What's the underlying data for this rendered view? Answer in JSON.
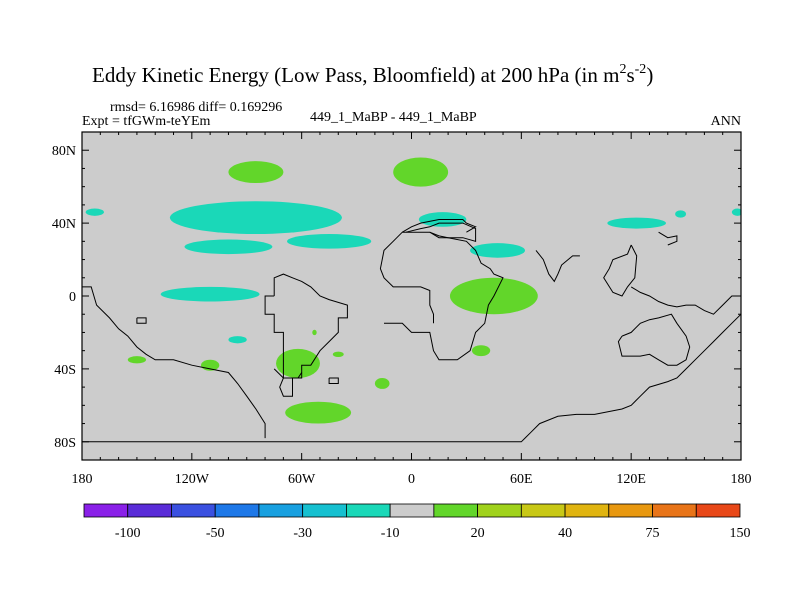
{
  "chart_data": {
    "type": "heatmap",
    "title": "Eddy Kinetic Energy (Low Pass, Bloomfield) at 200 hPa (in m",
    "title_units_m_exp": "2",
    "title_units_s": "s",
    "title_units_s_exp": "-2",
    "title_close": ")",
    "stats": "rmsd= 6.16986 diff= 0.169296",
    "experiment": "Expt = tfGWm-teYEm",
    "case_label": "449_1_MaBP - 449_1_MaBP",
    "period": "ANN",
    "x_ticks": [
      "180",
      "120W",
      "60W",
      "0",
      "60E",
      "120E",
      "180"
    ],
    "x_tick_values": [
      -180,
      -120,
      -60,
      0,
      60,
      120,
      180
    ],
    "y_ticks": [
      "80N",
      "40N",
      "0",
      "40S",
      "80S"
    ],
    "y_tick_values": [
      80,
      40,
      0,
      -40,
      -80
    ],
    "xlim": [
      -180,
      180
    ],
    "ylim": [
      -90,
      90
    ],
    "colorbar": {
      "colors": [
        "#8a20e8",
        "#5a2cd8",
        "#3a50e0",
        "#1e78e8",
        "#18a0e0",
        "#16c0d0",
        "#1ad8b8",
        "#cccccc",
        "#62d62a",
        "#a0d21c",
        "#c8c816",
        "#e0b410",
        "#e89810",
        "#e87418",
        "#e84818"
      ],
      "labels": [
        "-100",
        "-50",
        "-30",
        "-10",
        "20",
        "40",
        "75",
        "150"
      ],
      "label_after_box": [
        1,
        3,
        5,
        7,
        9,
        11,
        13,
        15
      ]
    },
    "background_color": "#cccccc",
    "blobs": [
      {
        "category": "negative-cyan",
        "color": "#1ad8b8",
        "lon": -85,
        "lat": 43,
        "rlon": 47,
        "rlat": 9
      },
      {
        "category": "negative-cyan",
        "color": "#1ad8b8",
        "lon": -45,
        "lat": 30,
        "rlon": 23,
        "rlat": 4
      },
      {
        "category": "negative-cyan",
        "color": "#1ad8b8",
        "lon": -100,
        "lat": 27,
        "rlon": 24,
        "rlat": 4
      },
      {
        "category": "negative-cyan",
        "color": "#1ad8b8",
        "lon": -110,
        "lat": 1,
        "rlon": 27,
        "rlat": 4
      },
      {
        "category": "negative-cyan",
        "color": "#1ad8b8",
        "lon": 17,
        "lat": 42,
        "rlon": 13,
        "rlat": 4
      },
      {
        "category": "negative-cyan",
        "color": "#1ad8b8",
        "lon": 47,
        "lat": 25,
        "rlon": 15,
        "rlat": 4
      },
      {
        "category": "negative-cyan",
        "color": "#1ad8b8",
        "lon": 123,
        "lat": 40,
        "rlon": 16,
        "rlat": 3
      },
      {
        "category": "negative-cyan",
        "color": "#1ad8b8",
        "lon": 147,
        "lat": 45,
        "rlon": 3,
        "rlat": 2
      },
      {
        "category": "negative-cyan",
        "color": "#1ad8b8",
        "lon": -173,
        "lat": 46,
        "rlon": 5,
        "rlat": 2
      },
      {
        "category": "negative-cyan",
        "color": "#1ad8b8",
        "lon": 178,
        "lat": 46,
        "rlon": 3,
        "rlat": 2
      },
      {
        "category": "negative-cyan",
        "color": "#1ad8b8",
        "lon": -95,
        "lat": -24,
        "rlon": 5,
        "rlat": 2
      },
      {
        "category": "positive-green",
        "color": "#62d62a",
        "lon": -85,
        "lat": 68,
        "rlon": 15,
        "rlat": 6
      },
      {
        "category": "positive-green",
        "color": "#62d62a",
        "lon": 5,
        "lat": 68,
        "rlon": 15,
        "rlat": 8
      },
      {
        "category": "positive-green",
        "color": "#62d62a",
        "lon": 45,
        "lat": 0,
        "rlon": 24,
        "rlat": 10
      },
      {
        "category": "positive-green",
        "color": "#62d62a",
        "lon": -62,
        "lat": -37,
        "rlon": 12,
        "rlat": 8
      },
      {
        "category": "positive-green",
        "color": "#62d62a",
        "lon": -51,
        "lat": -64,
        "rlon": 18,
        "rlat": 6
      },
      {
        "category": "positive-green",
        "color": "#62d62a",
        "lon": -110,
        "lat": -38,
        "rlon": 5,
        "rlat": 3
      },
      {
        "category": "positive-green",
        "color": "#62d62a",
        "lon": -150,
        "lat": -35,
        "rlon": 5,
        "rlat": 2
      },
      {
        "category": "positive-green",
        "color": "#62d62a",
        "lon": -16,
        "lat": -48,
        "rlon": 4,
        "rlat": 3
      },
      {
        "category": "positive-green",
        "color": "#62d62a",
        "lon": 38,
        "lat": -30,
        "rlon": 5,
        "rlat": 3
      },
      {
        "category": "positive-green",
        "color": "#62d62a",
        "lon": -40,
        "lat": -32,
        "rlon": 3,
        "rlat": 1.5
      },
      {
        "category": "positive-green",
        "color": "#62d62a",
        "lon": -53,
        "lat": -20,
        "rlon": 1.2,
        "rlat": 1.5
      }
    ],
    "coastlines": [
      {
        "name": "south-america",
        "points": [
          [
            -75,
            0
          ],
          [
            -80,
            0
          ],
          [
            -80,
            -10
          ],
          [
            -75,
            -10
          ],
          [
            -75,
            -20
          ],
          [
            -70,
            -20
          ],
          [
            -70,
            -30
          ],
          [
            -70,
            -45
          ],
          [
            -72,
            -50
          ],
          [
            -70,
            -55
          ],
          [
            -65,
            -55
          ],
          [
            -65,
            -45
          ],
          [
            -60,
            -45
          ],
          [
            -60,
            -38
          ],
          [
            -55,
            -38
          ],
          [
            -50,
            -30
          ],
          [
            -45,
            -25
          ],
          [
            -40,
            -20
          ],
          [
            -40,
            -12
          ],
          [
            -35,
            -12
          ],
          [
            -35,
            -5
          ],
          [
            -45,
            -2
          ],
          [
            -50,
            0
          ],
          [
            -55,
            5
          ],
          [
            -60,
            8
          ],
          [
            -65,
            10
          ],
          [
            -70,
            12
          ],
          [
            -75,
            10
          ],
          [
            -75,
            0
          ]
        ]
      },
      {
        "name": "africa",
        "points": [
          [
            -15,
            -15
          ],
          [
            -5,
            -15
          ],
          [
            0,
            -20
          ],
          [
            10,
            -20
          ],
          [
            12,
            -30
          ],
          [
            15,
            -35
          ],
          [
            20,
            -35
          ],
          [
            25,
            -35
          ],
          [
            32,
            -30
          ],
          [
            35,
            -20
          ],
          [
            40,
            -15
          ],
          [
            42,
            -5
          ],
          [
            45,
            0
          ],
          [
            50,
            10
          ],
          [
            45,
            12
          ],
          [
            43,
            15
          ],
          [
            38,
            18
          ],
          [
            35,
            25
          ],
          [
            30,
            30
          ],
          [
            20,
            32
          ],
          [
            15,
            32
          ],
          [
            10,
            35
          ],
          [
            0,
            35
          ],
          [
            -5,
            35
          ],
          [
            -10,
            30
          ],
          [
            -15,
            25
          ],
          [
            -17,
            15
          ],
          [
            -15,
            10
          ],
          [
            -10,
            5
          ],
          [
            -5,
            5
          ],
          [
            0,
            5
          ],
          [
            5,
            5
          ],
          [
            10,
            3
          ],
          [
            10,
            -5
          ],
          [
            12,
            -10
          ],
          [
            12,
            -15
          ]
        ]
      },
      {
        "name": "asia-south",
        "points": [
          [
            -3,
            35
          ],
          [
            5,
            37
          ],
          [
            10,
            38
          ],
          [
            15,
            40
          ],
          [
            22,
            40
          ],
          [
            28,
            40
          ],
          [
            35,
            37
          ],
          [
            35,
            30
          ],
          [
            28,
            32
          ],
          [
            20,
            32
          ],
          [
            15,
            33
          ],
          [
            10,
            35
          ]
        ]
      },
      {
        "name": "india",
        "points": [
          [
            68,
            25
          ],
          [
            72,
            20
          ],
          [
            75,
            12
          ],
          [
            78,
            8
          ],
          [
            80,
            12
          ],
          [
            82,
            17
          ],
          [
            88,
            22
          ],
          [
            92,
            22
          ]
        ]
      },
      {
        "name": "se-asia-australia",
        "points": [
          [
            120,
            28
          ],
          [
            123,
            22
          ],
          [
            122,
            10
          ],
          [
            118,
            5
          ],
          [
            115,
            0
          ],
          [
            110,
            2
          ],
          [
            105,
            10
          ],
          [
            108,
            15
          ],
          [
            110,
            20
          ],
          [
            118,
            23
          ],
          [
            120,
            28
          ]
        ]
      },
      {
        "name": "australia",
        "points": [
          [
            115,
            -22
          ],
          [
            113,
            -25
          ],
          [
            115,
            -33
          ],
          [
            125,
            -33
          ],
          [
            130,
            -32
          ],
          [
            135,
            -35
          ],
          [
            140,
            -38
          ],
          [
            145,
            -38
          ],
          [
            150,
            -35
          ],
          [
            152,
            -28
          ],
          [
            150,
            -22
          ],
          [
            145,
            -15
          ],
          [
            142,
            -10
          ],
          [
            135,
            -12
          ],
          [
            130,
            -13
          ],
          [
            125,
            -15
          ],
          [
            120,
            -20
          ],
          [
            115,
            -22
          ]
        ]
      },
      {
        "name": "pacific-west",
        "points": [
          [
            120,
            5
          ],
          [
            125,
            2
          ],
          [
            130,
            0
          ],
          [
            135,
            -3
          ],
          [
            140,
            -5
          ],
          [
            145,
            -6
          ],
          [
            150,
            -5
          ],
          [
            155,
            -5
          ],
          [
            160,
            -8
          ],
          [
            165,
            -10
          ],
          [
            170,
            -5
          ],
          [
            175,
            0
          ],
          [
            180,
            0
          ]
        ]
      },
      {
        "name": "antarctica",
        "points": [
          [
            -180,
            -78
          ],
          [
            -180,
            -80
          ],
          [
            -120,
            -80
          ],
          [
            -90,
            -80
          ],
          [
            -60,
            -80
          ],
          [
            0,
            -80
          ],
          [
            60,
            -80
          ],
          [
            62,
            -78
          ],
          [
            65,
            -75
          ],
          [
            70,
            -70
          ],
          [
            80,
            -66
          ],
          [
            90,
            -65
          ],
          [
            100,
            -65
          ],
          [
            115,
            -62
          ],
          [
            120,
            -60
          ],
          [
            125,
            -55
          ],
          [
            130,
            -50
          ],
          [
            140,
            -47
          ],
          [
            145,
            -45
          ],
          [
            150,
            -40
          ],
          [
            155,
            -35
          ],
          [
            160,
            -30
          ],
          [
            165,
            -25
          ],
          [
            170,
            -20
          ],
          [
            175,
            -15
          ],
          [
            180,
            -10
          ]
        ]
      },
      {
        "name": "south-atlantic-isle",
        "points": [
          [
            -45,
            -45
          ],
          [
            -40,
            -45
          ],
          [
            -40,
            -48
          ],
          [
            -45,
            -48
          ],
          [
            -45,
            -45
          ]
        ]
      },
      {
        "name": "west-coast-chile",
        "points": [
          [
            -180,
            5
          ],
          [
            -175,
            5
          ],
          [
            -172,
            -5
          ],
          [
            -165,
            -12
          ],
          [
            -160,
            -18
          ],
          [
            -155,
            -22
          ],
          [
            -150,
            -28
          ],
          [
            -145,
            -32
          ],
          [
            -140,
            -35
          ],
          [
            -130,
            -35
          ],
          [
            -120,
            -38
          ],
          [
            -110,
            -40
          ],
          [
            -100,
            -42
          ],
          [
            -95,
            -48
          ],
          [
            -90,
            -55
          ],
          [
            -85,
            -62
          ],
          [
            -80,
            -70
          ],
          [
            -80,
            -78
          ]
        ]
      },
      {
        "name": "us-coast",
        "points": [
          [
            -5,
            35
          ],
          [
            0,
            38
          ],
          [
            5,
            40
          ],
          [
            15,
            42
          ],
          [
            20,
            42
          ],
          [
            28,
            42
          ],
          [
            30,
            40
          ],
          [
            35,
            38
          ],
          [
            30,
            35
          ]
        ]
      },
      {
        "name": "mexico-stub",
        "points": [
          [
            -75,
            -40
          ],
          [
            -70,
            -45
          ],
          [
            -62,
            -45
          ],
          [
            -60,
            -42
          ]
        ]
      },
      {
        "name": "east-pacific-isle",
        "points": [
          [
            -150,
            -12
          ],
          [
            -145,
            -12
          ],
          [
            -145,
            -15
          ],
          [
            -150,
            -15
          ],
          [
            -150,
            -12
          ]
        ]
      },
      {
        "name": "west-asia",
        "points": [
          [
            135,
            35
          ],
          [
            140,
            32
          ],
          [
            145,
            33
          ],
          [
            145,
            30
          ],
          [
            140,
            28
          ]
        ]
      }
    ]
  }
}
